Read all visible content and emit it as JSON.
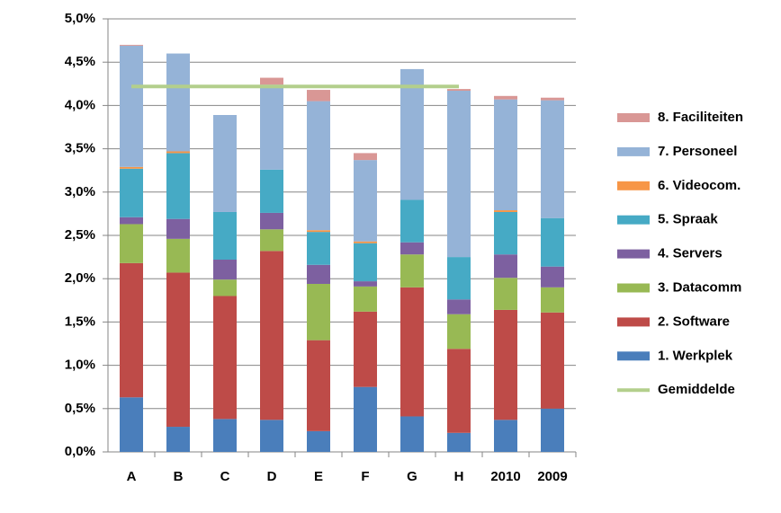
{
  "chart_data": {
    "type": "bar",
    "stacked": true,
    "categories": [
      "A",
      "B",
      "C",
      "D",
      "E",
      "F",
      "G",
      "H",
      "2010",
      "2009"
    ],
    "series": [
      {
        "name": "1. Werkplek",
        "color": "#4a7ebb",
        "values": [
          0.63,
          0.29,
          0.38,
          0.37,
          0.24,
          0.75,
          0.41,
          0.22,
          0.37,
          0.5
        ]
      },
      {
        "name": "2. Software",
        "color": "#be4b48",
        "values": [
          1.55,
          1.78,
          1.42,
          1.95,
          1.05,
          0.87,
          1.49,
          0.97,
          1.27,
          1.11
        ]
      },
      {
        "name": "3. Datacomm",
        "color": "#98b954",
        "values": [
          0.45,
          0.39,
          0.19,
          0.25,
          0.65,
          0.29,
          0.38,
          0.4,
          0.37,
          0.29
        ]
      },
      {
        "name": "4. Servers",
        "color": "#7d60a0",
        "values": [
          0.08,
          0.23,
          0.23,
          0.19,
          0.22,
          0.06,
          0.14,
          0.17,
          0.27,
          0.24
        ]
      },
      {
        "name": "5. Spraak",
        "color": "#46aac5",
        "values": [
          0.56,
          0.76,
          0.55,
          0.5,
          0.38,
          0.44,
          0.49,
          0.49,
          0.49,
          0.56
        ]
      },
      {
        "name": "6. Videocom.",
        "color": "#f79646",
        "values": [
          0.02,
          0.02,
          0,
          0,
          0.02,
          0.02,
          0,
          0,
          0.02,
          0
        ]
      },
      {
        "name": "7. Personeel",
        "color": "#95b3d7",
        "values": [
          1.4,
          1.13,
          1.12,
          0.98,
          1.49,
          0.94,
          1.51,
          1.92,
          1.28,
          1.36
        ]
      },
      {
        "name": "8. Faciliteiten",
        "color": "#d99795",
        "values": [
          0.01,
          0,
          0,
          0.08,
          0.13,
          0.08,
          0,
          0.02,
          0.04,
          0.03
        ]
      },
      {
        "name": "Gemiddelde",
        "color": "#b3cf8c",
        "type": "line",
        "values": [
          4.22,
          4.22,
          4.22,
          4.22,
          4.22,
          4.22,
          4.22,
          4.22,
          null,
          null
        ]
      }
    ],
    "ylim": [
      0,
      5
    ],
    "yticks": [
      {
        "value": 0,
        "label": "0,0%"
      },
      {
        "value": 0.5,
        "label": "0,5%"
      },
      {
        "value": 1,
        "label": "1,0%"
      },
      {
        "value": 1.5,
        "label": "1,5%"
      },
      {
        "value": 2,
        "label": "2,0%"
      },
      {
        "value": 2.5,
        "label": "2,5%"
      },
      {
        "value": 3,
        "label": "3,0%"
      },
      {
        "value": 3.5,
        "label": "3,5%"
      },
      {
        "value": 4,
        "label": "4,0%"
      },
      {
        "value": 4.5,
        "label": "4,5%"
      },
      {
        "value": 5,
        "label": "5,0%"
      }
    ],
    "grid": true,
    "legend": "right"
  }
}
